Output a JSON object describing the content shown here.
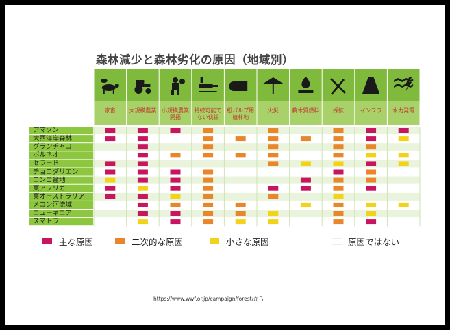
{
  "colors": {
    "main": "#c8155f",
    "secondary": "#e9852a",
    "minor": "#f3d31a",
    "none": "#ffffff",
    "header_green": "#7fba3d",
    "header_green_light": "#a9d16a",
    "row_green": "#8dc63f",
    "row_light": "#eaf4dc"
  },
  "chart_data": {
    "type": "table",
    "title": "森林減少と森林劣化の原因（地域別）",
    "causes": [
      {
        "label": "家畜",
        "icon": "livestock-icon"
      },
      {
        "label": "大規模農業",
        "icon": "tractor-icon"
      },
      {
        "label": "小規模農業開拓",
        "icon": "farmer-icon"
      },
      {
        "label": "持続可能でない伐採",
        "icon": "chainsaw-icon"
      },
      {
        "label": "紙パルプ用植林地",
        "icon": "log-icon"
      },
      {
        "label": "火災",
        "icon": "fire-tree-icon"
      },
      {
        "label": "薪木質燃料",
        "icon": "firewood-icon"
      },
      {
        "label": "採鉱",
        "icon": "mining-icon"
      },
      {
        "label": "インフラ",
        "icon": "road-icon"
      },
      {
        "label": "水力発電",
        "icon": "hydropower-icon"
      }
    ],
    "regions": [
      "アマゾン",
      "大西洋岸森林",
      "グランチャコ",
      "ボルネオ",
      "セラード",
      "チョコダリエン",
      "コンゴ盆地",
      "東アフリカ",
      "東オーストラリア",
      "メコン河流域",
      "ニューギニア",
      "スマトラ"
    ],
    "values": [
      [
        "main",
        "main",
        "main",
        "secondary",
        "none",
        "secondary",
        "none",
        "secondary",
        "main",
        "main"
      ],
      [
        "main",
        "main",
        "none",
        "secondary",
        "secondary",
        "secondary",
        "secondary",
        "secondary",
        "main",
        "minor"
      ],
      [
        "none",
        "main",
        "none",
        "secondary",
        "none",
        "secondary",
        "none",
        "secondary",
        "secondary",
        "none"
      ],
      [
        "none",
        "main",
        "secondary",
        "secondary",
        "secondary",
        "secondary",
        "none",
        "secondary",
        "minor",
        "minor"
      ],
      [
        "main",
        "main",
        "none",
        "none",
        "none",
        "secondary",
        "minor",
        "minor",
        "main",
        "minor"
      ],
      [
        "main",
        "main",
        "main",
        "secondary",
        "none",
        "none",
        "none",
        "main",
        "secondary",
        "none"
      ],
      [
        "minor",
        "main",
        "main",
        "secondary",
        "none",
        "none",
        "main",
        "secondary",
        "secondary",
        "none"
      ],
      [
        "main",
        "minor",
        "main",
        "secondary",
        "none",
        "main",
        "main",
        "secondary",
        "main",
        "none"
      ],
      [
        "main",
        "main",
        "minor",
        "secondary",
        "none",
        "secondary",
        "none",
        "minor",
        "none",
        "none"
      ],
      [
        "none",
        "main",
        "secondary",
        "secondary",
        "secondary",
        "none",
        "minor",
        "secondary",
        "minor",
        "minor"
      ],
      [
        "none",
        "main",
        "main",
        "secondary",
        "secondary",
        "minor",
        "none",
        "secondary",
        "minor",
        "none"
      ],
      [
        "none",
        "minor",
        "main",
        "secondary",
        "minor",
        "minor",
        "none",
        "secondary",
        "main",
        "none"
      ]
    ],
    "legend": [
      {
        "key": "main",
        "label": "主な原因"
      },
      {
        "key": "secondary",
        "label": "二次的な原因"
      },
      {
        "key": "minor",
        "label": "小さな原因"
      },
      {
        "key": "none",
        "label": "原因ではない"
      }
    ]
  },
  "source": "https://www.wwf.or.jp/campaign/forest/から"
}
